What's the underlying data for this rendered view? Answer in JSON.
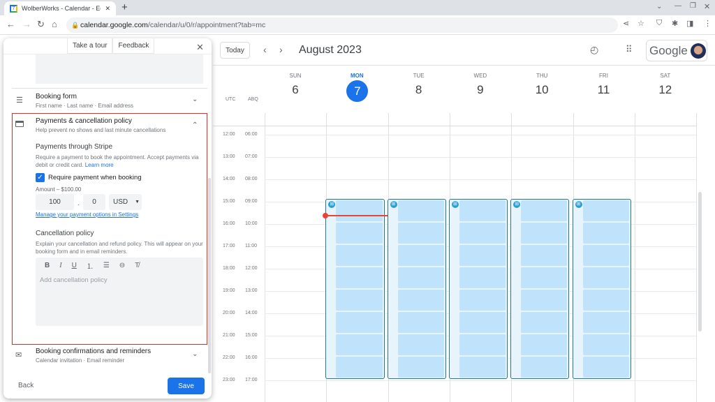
{
  "browser": {
    "tab_title": "WolberWorks - Calendar - Edit bo",
    "url_host": "calendar.google.com",
    "url_path": "/calendar/u/0/r/appointment?tab=mc",
    "new_tab": "+"
  },
  "panel": {
    "take_tour": "Take a tour",
    "feedback": "Feedback",
    "booking_form": {
      "title": "Booking form",
      "sub": "First name · Last name · Email address"
    },
    "payments": {
      "title": "Payments & cancellation policy",
      "sub": "Help prevent no shows and last minute cancellations",
      "stripe_title": "Payments through Stripe",
      "stripe_desc": "Require a payment to book the appointment. Accept payments via debit or credit card.",
      "learn_more": "Learn more",
      "require_label": "Require payment when booking",
      "require_checked": true,
      "amount_label": "Amount – $100.00",
      "amount_whole": "100",
      "amount_sep": ".",
      "amount_cents": "0",
      "currency": "USD",
      "manage_link": "Manage your payment options in Settings",
      "cancel_title": "Cancellation policy",
      "cancel_desc": "Explain your cancellation and refund policy. This will appear on your booking form and in email reminders.",
      "cancel_placeholder": "Add cancellation policy"
    },
    "confirmations": {
      "title": "Booking confirmations and reminders",
      "sub": "Calendar invitation · Email reminder"
    },
    "back": "Back",
    "save": "Save"
  },
  "calendar": {
    "today": "Today",
    "month": "August 2023",
    "logo": "Google",
    "tz": [
      "UTC",
      "ABQ"
    ],
    "days": [
      {
        "name": "SUN",
        "num": "6"
      },
      {
        "name": "MON",
        "num": "7",
        "today": true
      },
      {
        "name": "TUE",
        "num": "8"
      },
      {
        "name": "WED",
        "num": "9"
      },
      {
        "name": "THU",
        "num": "10"
      },
      {
        "name": "FRI",
        "num": "11"
      },
      {
        "name": "SAT",
        "num": "12"
      }
    ],
    "utc_hours": [
      "12:00",
      "13:00",
      "14:00",
      "15:00",
      "16:00",
      "17:00",
      "18:00",
      "19:00",
      "20:00",
      "21:00",
      "22:00",
      "23:00"
    ],
    "abq_hours": [
      "06:00",
      "07:00",
      "08:00",
      "09:00",
      "10:00",
      "11:00",
      "12:00",
      "13:00",
      "14:00",
      "15:00",
      "16:00",
      "17:00"
    ],
    "colors": {
      "accent": "#1a73e8",
      "slot": "#bfe3fa",
      "now": "#ea4335",
      "highlight": "#d93025"
    }
  }
}
